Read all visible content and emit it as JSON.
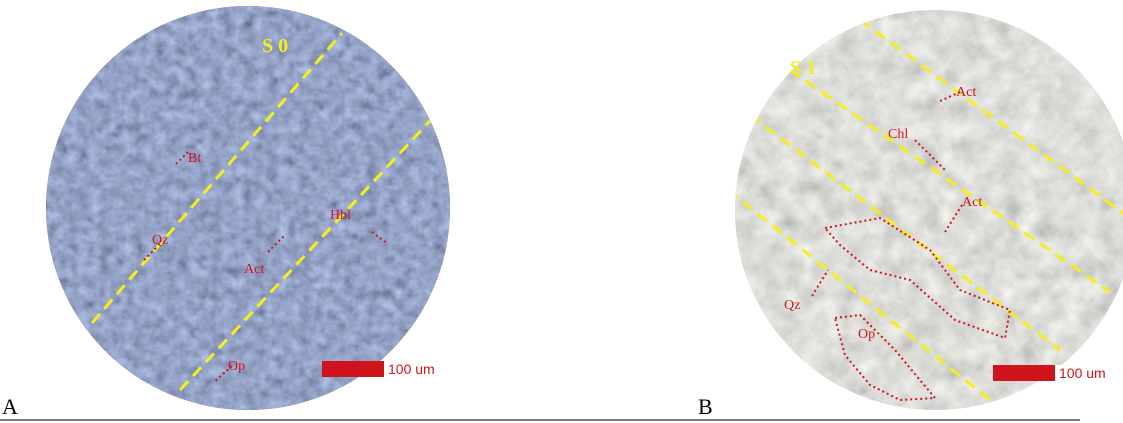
{
  "panels": [
    {
      "label": "A",
      "foliation": "S 0",
      "scale_bar": "100 um",
      "minerals": [
        "Bt",
        "Qz",
        "Act",
        "Hbl",
        "Op"
      ]
    },
    {
      "label": "B",
      "foliation": "S 1",
      "scale_bar": "100 um",
      "minerals": [
        "Act",
        "Chl",
        "Act",
        "Qz",
        "Op"
      ]
    }
  ]
}
